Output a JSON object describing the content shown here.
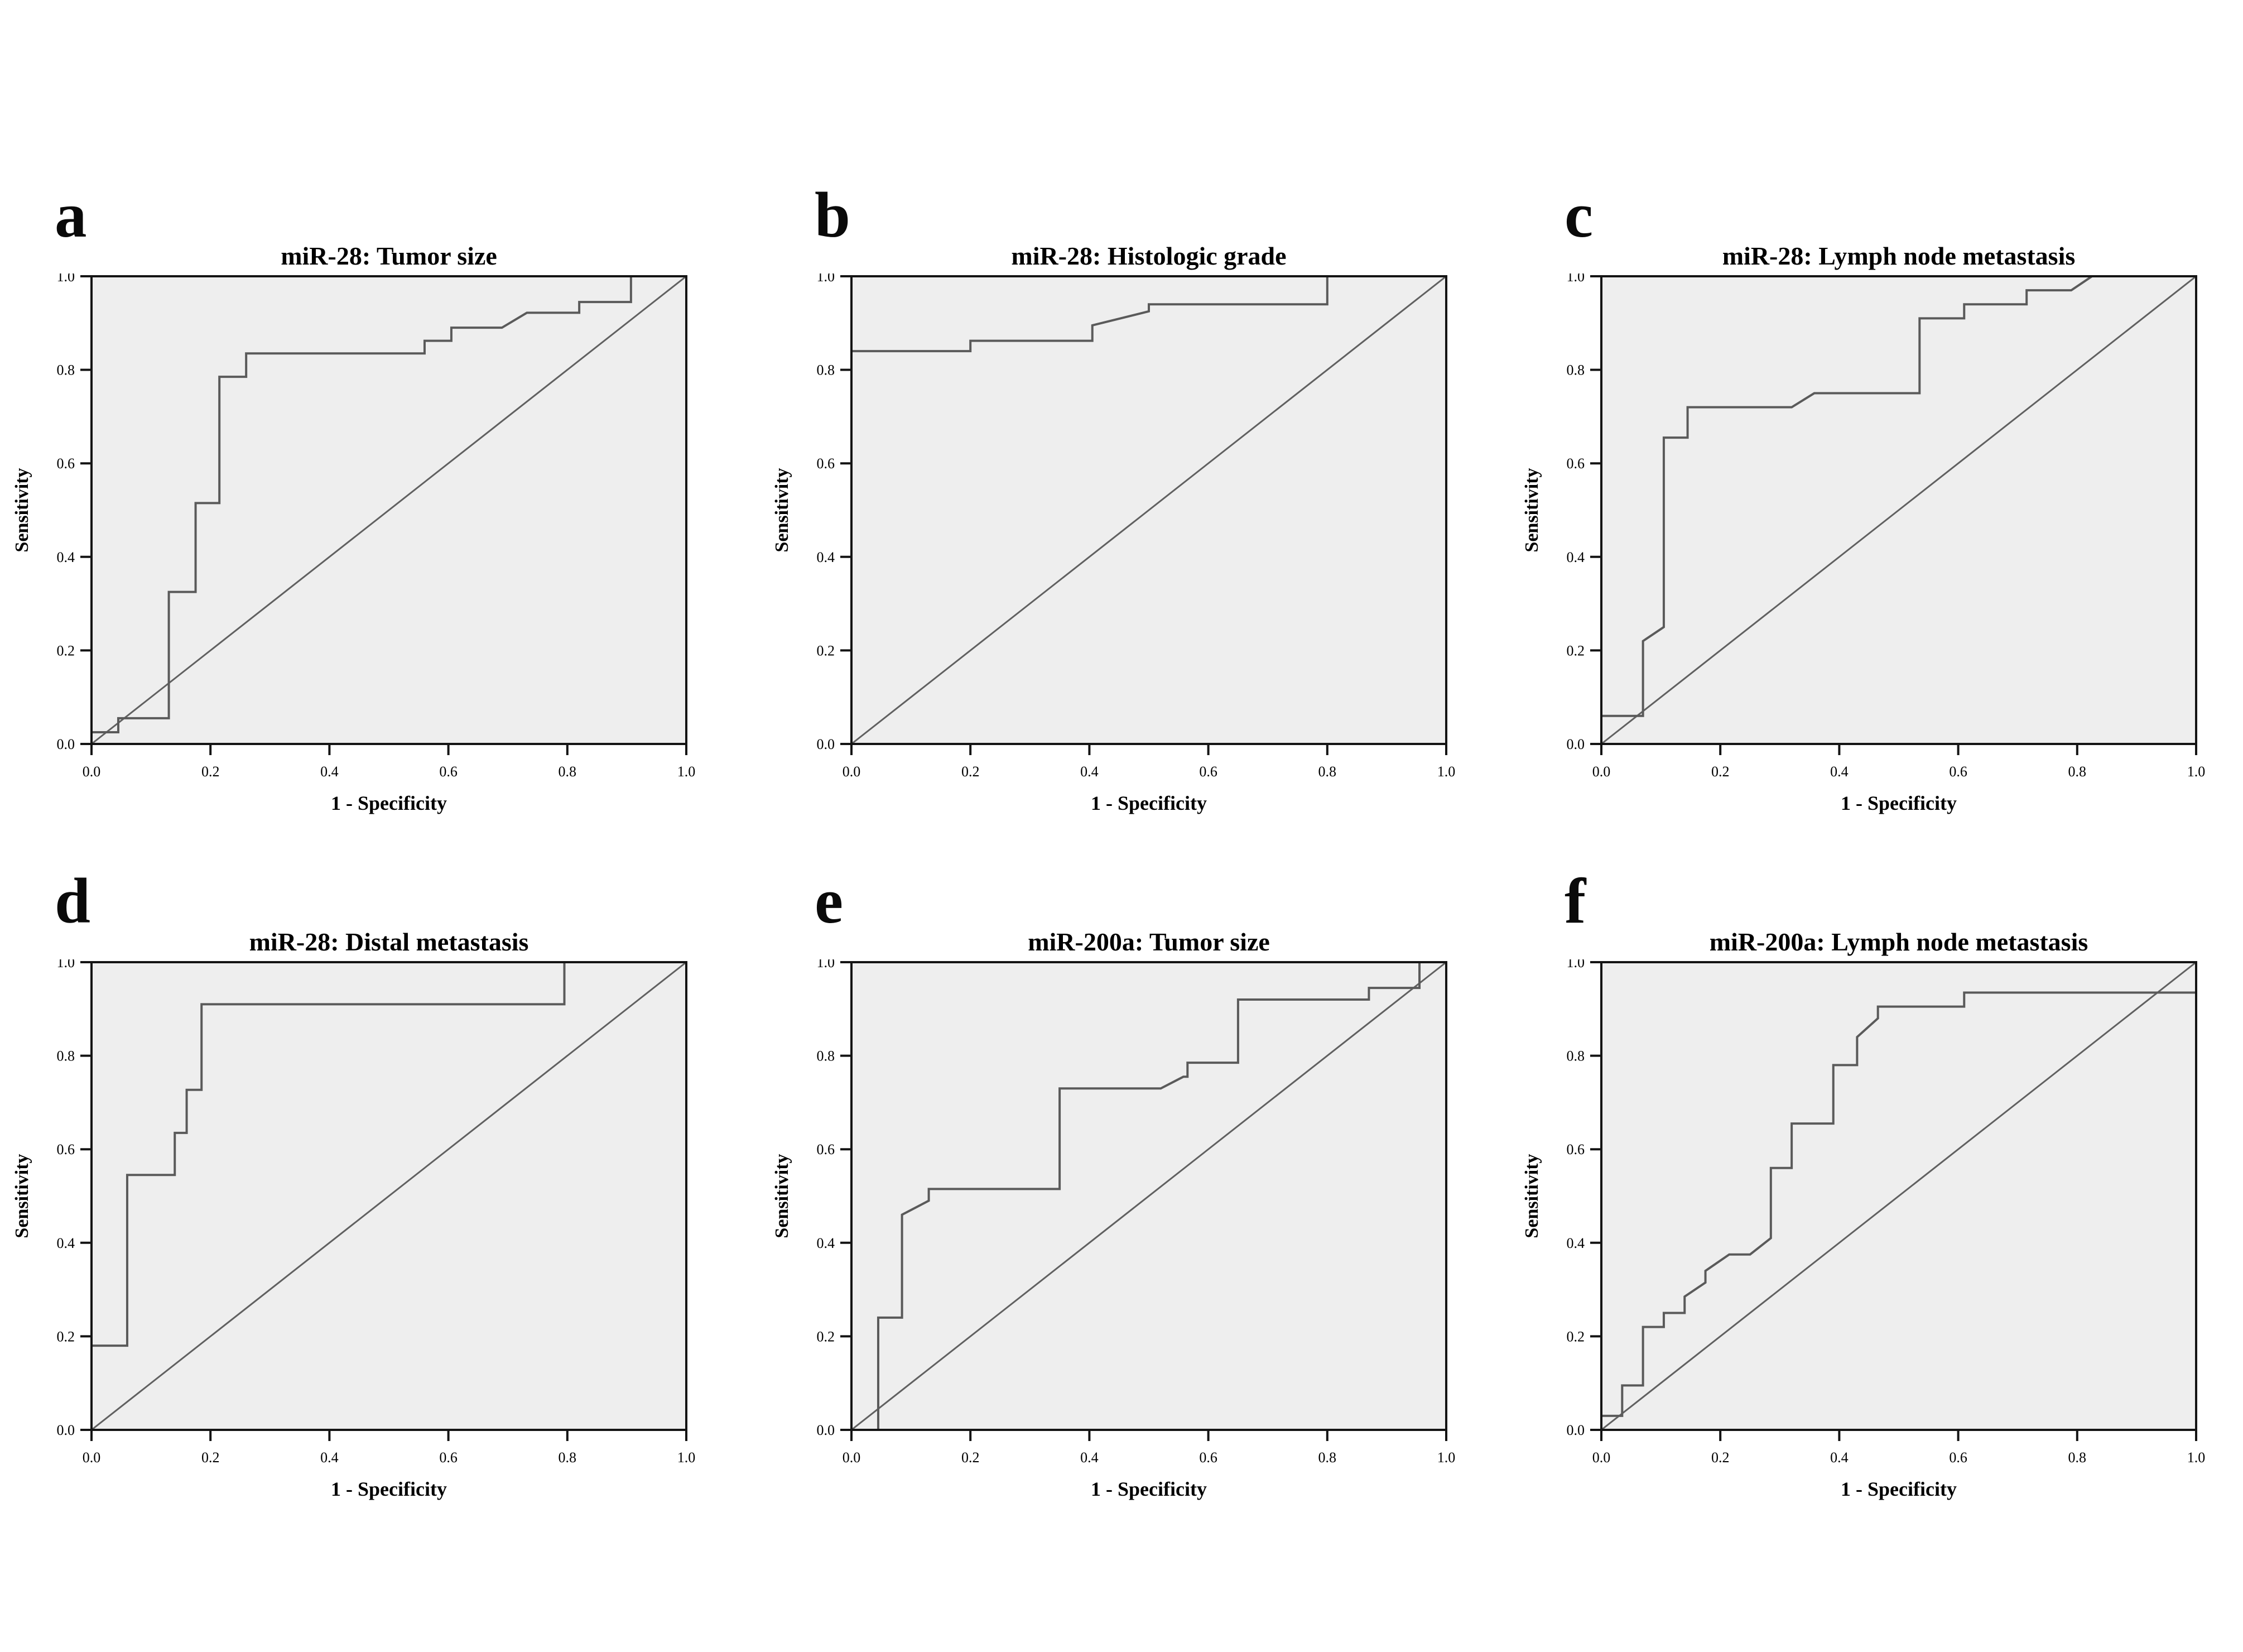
{
  "figure": {
    "layout": "2x3",
    "panel_labels": [
      "a",
      "b",
      "c",
      "d",
      "e",
      "f"
    ]
  },
  "colors": {
    "page_bg": "#ffffff",
    "plot_bg": "#eeeeee",
    "frame": "#141414",
    "curve": "#5a5a5a",
    "diagonal": "#606060",
    "text": "#000000"
  },
  "chart_data": [
    {
      "panel_label": "a",
      "type": "line",
      "title": "miR-28: Tumor size",
      "xlabel": "1 - Specificity",
      "ylabel": "Sensitivity",
      "xlim": [
        0,
        1
      ],
      "ylim": [
        0,
        1
      ],
      "grid": false,
      "legend": false,
      "reference_diagonal": true,
      "x_ticks": {
        "values": [
          0,
          0.2,
          0.4,
          0.6,
          0.8,
          1.0
        ],
        "labels": [
          "0.0",
          "0.2",
          "0.4",
          "0.6",
          "0.8",
          "1.0"
        ]
      },
      "y_ticks": {
        "values": [
          0,
          0.2,
          0.4,
          0.6,
          0.8,
          1.0
        ],
        "labels": [
          "0.0",
          "0.2",
          "0.4",
          "0.6",
          "0.8",
          "1.0"
        ]
      },
      "series": [
        {
          "name": "ROC curve",
          "step": true,
          "points": [
            [
              0,
              0
            ],
            [
              0,
              0.025
            ],
            [
              0.045,
              0.025
            ],
            [
              0.045,
              0.055
            ],
            [
              0.13,
              0.055
            ],
            [
              0.13,
              0.325
            ],
            [
              0.175,
              0.325
            ],
            [
              0.175,
              0.515
            ],
            [
              0.215,
              0.515
            ],
            [
              0.215,
              0.785
            ],
            [
              0.26,
              0.785
            ],
            [
              0.26,
              0.835
            ],
            [
              0.56,
              0.835
            ],
            [
              0.56,
              0.862
            ],
            [
              0.605,
              0.862
            ],
            [
              0.605,
              0.89
            ],
            [
              0.69,
              0.89
            ],
            [
              0.732,
              0.922
            ],
            [
              0.82,
              0.922
            ],
            [
              0.82,
              0.945
            ],
            [
              0.907,
              0.945
            ],
            [
              0.907,
              1
            ],
            [
              1,
              1
            ]
          ]
        }
      ]
    },
    {
      "panel_label": "b",
      "type": "line",
      "title": "miR-28: Histologic grade",
      "xlabel": "1 - Specificity",
      "ylabel": "Sensitivity",
      "xlim": [
        0,
        1
      ],
      "ylim": [
        0,
        1
      ],
      "grid": false,
      "legend": false,
      "reference_diagonal": true,
      "x_ticks": {
        "values": [
          0,
          0.2,
          0.4,
          0.6,
          0.8,
          1.0
        ],
        "labels": [
          "0.0",
          "0.2",
          "0.4",
          "0.6",
          "0.8",
          "1.0"
        ]
      },
      "y_ticks": {
        "values": [
          0,
          0.2,
          0.4,
          0.6,
          0.8,
          1.0
        ],
        "labels": [
          "0.0",
          "0.2",
          "0.4",
          "0.6",
          "0.8",
          "1.0"
        ]
      },
      "series": [
        {
          "name": "ROC curve",
          "step": true,
          "points": [
            [
              0,
              0
            ],
            [
              0,
              0.84
            ],
            [
              0.2,
              0.84
            ],
            [
              0.2,
              0.862
            ],
            [
              0.405,
              0.862
            ],
            [
              0.405,
              0.895
            ],
            [
              0.5,
              0.925
            ],
            [
              0.5,
              0.94
            ],
            [
              0.8,
              0.94
            ],
            [
              0.8,
              1
            ],
            [
              1,
              1
            ]
          ]
        }
      ]
    },
    {
      "panel_label": "c",
      "type": "line",
      "title": "miR-28: Lymph node metastasis",
      "xlabel": "1 - Specificity",
      "ylabel": "Sensitivity",
      "xlim": [
        0,
        1
      ],
      "ylim": [
        0,
        1
      ],
      "grid": false,
      "legend": false,
      "reference_diagonal": true,
      "x_ticks": {
        "values": [
          0,
          0.2,
          0.4,
          0.6,
          0.8,
          1.0
        ],
        "labels": [
          "0.0",
          "0.2",
          "0.4",
          "0.6",
          "0.8",
          "1.0"
        ]
      },
      "y_ticks": {
        "values": [
          0,
          0.2,
          0.4,
          0.6,
          0.8,
          1.0
        ],
        "labels": [
          "0.0",
          "0.2",
          "0.4",
          "0.6",
          "0.8",
          "1.0"
        ]
      },
      "series": [
        {
          "name": "ROC curve",
          "step": true,
          "points": [
            [
              0,
              0
            ],
            [
              0,
              0.06
            ],
            [
              0.07,
              0.06
            ],
            [
              0.07,
              0.22
            ],
            [
              0.105,
              0.25
            ],
            [
              0.105,
              0.655
            ],
            [
              0.145,
              0.655
            ],
            [
              0.145,
              0.72
            ],
            [
              0.32,
              0.72
            ],
            [
              0.358,
              0.75
            ],
            [
              0.535,
              0.75
            ],
            [
              0.535,
              0.91
            ],
            [
              0.61,
              0.91
            ],
            [
              0.61,
              0.94
            ],
            [
              0.715,
              0.94
            ],
            [
              0.715,
              0.97
            ],
            [
              0.79,
              0.97
            ],
            [
              0.825,
              1
            ],
            [
              1,
              1
            ]
          ]
        }
      ]
    },
    {
      "panel_label": "d",
      "type": "line",
      "title": "miR-28: Distal metastasis",
      "xlabel": "1 - Specificity",
      "ylabel": "Sensitivity",
      "xlim": [
        0,
        1
      ],
      "ylim": [
        0,
        1
      ],
      "grid": false,
      "legend": false,
      "reference_diagonal": true,
      "x_ticks": {
        "values": [
          0,
          0.2,
          0.4,
          0.6,
          0.8,
          1.0
        ],
        "labels": [
          "0.0",
          "0.2",
          "0.4",
          "0.6",
          "0.8",
          "1.0"
        ]
      },
      "y_ticks": {
        "values": [
          0,
          0.2,
          0.4,
          0.6,
          0.8,
          1.0
        ],
        "labels": [
          "0.0",
          "0.2",
          "0.4",
          "0.6",
          "0.8",
          "1.0"
        ]
      },
      "series": [
        {
          "name": "ROC curve",
          "step": true,
          "points": [
            [
              0,
              0
            ],
            [
              0,
              0.18
            ],
            [
              0.06,
              0.18
            ],
            [
              0.06,
              0.545
            ],
            [
              0.14,
              0.545
            ],
            [
              0.14,
              0.635
            ],
            [
              0.16,
              0.635
            ],
            [
              0.16,
              0.727
            ],
            [
              0.185,
              0.727
            ],
            [
              0.185,
              0.91
            ],
            [
              0.795,
              0.91
            ],
            [
              0.795,
              1
            ],
            [
              1,
              1
            ]
          ]
        }
      ]
    },
    {
      "panel_label": "e",
      "type": "line",
      "title": "miR-200a: Tumor size",
      "xlabel": "1 - Specificity",
      "ylabel": "Sensitivity",
      "xlim": [
        0,
        1
      ],
      "ylim": [
        0,
        1
      ],
      "grid": false,
      "legend": false,
      "reference_diagonal": true,
      "x_ticks": {
        "values": [
          0,
          0.2,
          0.4,
          0.6,
          0.8,
          1.0
        ],
        "labels": [
          "0.0",
          "0.2",
          "0.4",
          "0.6",
          "0.8",
          "1.0"
        ]
      },
      "y_ticks": {
        "values": [
          0,
          0.2,
          0.4,
          0.6,
          0.8,
          1.0
        ],
        "labels": [
          "0.0",
          "0.2",
          "0.4",
          "0.6",
          "0.8",
          "1.0"
        ]
      },
      "series": [
        {
          "name": "ROC curve",
          "step": true,
          "points": [
            [
              0,
              0
            ],
            [
              0.045,
              0
            ],
            [
              0.045,
              0.24
            ],
            [
              0.085,
              0.24
            ],
            [
              0.085,
              0.46
            ],
            [
              0.13,
              0.49
            ],
            [
              0.13,
              0.515
            ],
            [
              0.35,
              0.515
            ],
            [
              0.35,
              0.73
            ],
            [
              0.52,
              0.73
            ],
            [
              0.558,
              0.755
            ],
            [
              0.565,
              0.755
            ],
            [
              0.565,
              0.785
            ],
            [
              0.65,
              0.785
            ],
            [
              0.65,
              0.92
            ],
            [
              0.87,
              0.92
            ],
            [
              0.87,
              0.945
            ],
            [
              0.955,
              0.945
            ],
            [
              0.955,
              1
            ],
            [
              1,
              1
            ]
          ]
        }
      ]
    },
    {
      "panel_label": "f",
      "type": "line",
      "title": "miR-200a: Lymph node metastasis",
      "xlabel": "1 - Specificity",
      "ylabel": "Sensitivity",
      "xlim": [
        0,
        1
      ],
      "ylim": [
        0,
        1
      ],
      "grid": false,
      "legend": false,
      "reference_diagonal": true,
      "x_ticks": {
        "values": [
          0,
          0.2,
          0.4,
          0.6,
          0.8,
          1.0
        ],
        "labels": [
          "0.0",
          "0.2",
          "0.4",
          "0.6",
          "0.8",
          "1.0"
        ]
      },
      "y_ticks": {
        "values": [
          0,
          0.2,
          0.4,
          0.6,
          0.8,
          1.0
        ],
        "labels": [
          "0.0",
          "0.2",
          "0.4",
          "0.6",
          "0.8",
          "1.0"
        ]
      },
      "series": [
        {
          "name": "ROC curve",
          "step": true,
          "points": [
            [
              0,
              0
            ],
            [
              0,
              0.03
            ],
            [
              0.035,
              0.03
            ],
            [
              0.035,
              0.095
            ],
            [
              0.07,
              0.095
            ],
            [
              0.07,
              0.22
            ],
            [
              0.105,
              0.22
            ],
            [
              0.105,
              0.25
            ],
            [
              0.14,
              0.25
            ],
            [
              0.14,
              0.285
            ],
            [
              0.175,
              0.315
            ],
            [
              0.175,
              0.34
            ],
            [
              0.215,
              0.375
            ],
            [
              0.25,
              0.375
            ],
            [
              0.285,
              0.41
            ],
            [
              0.285,
              0.56
            ],
            [
              0.32,
              0.56
            ],
            [
              0.32,
              0.655
            ],
            [
              0.39,
              0.655
            ],
            [
              0.39,
              0.78
            ],
            [
              0.43,
              0.78
            ],
            [
              0.43,
              0.84
            ],
            [
              0.465,
              0.88
            ],
            [
              0.465,
              0.905
            ],
            [
              0.61,
              0.905
            ],
            [
              0.61,
              0.935
            ],
            [
              1,
              0.935
            ]
          ]
        }
      ]
    }
  ]
}
